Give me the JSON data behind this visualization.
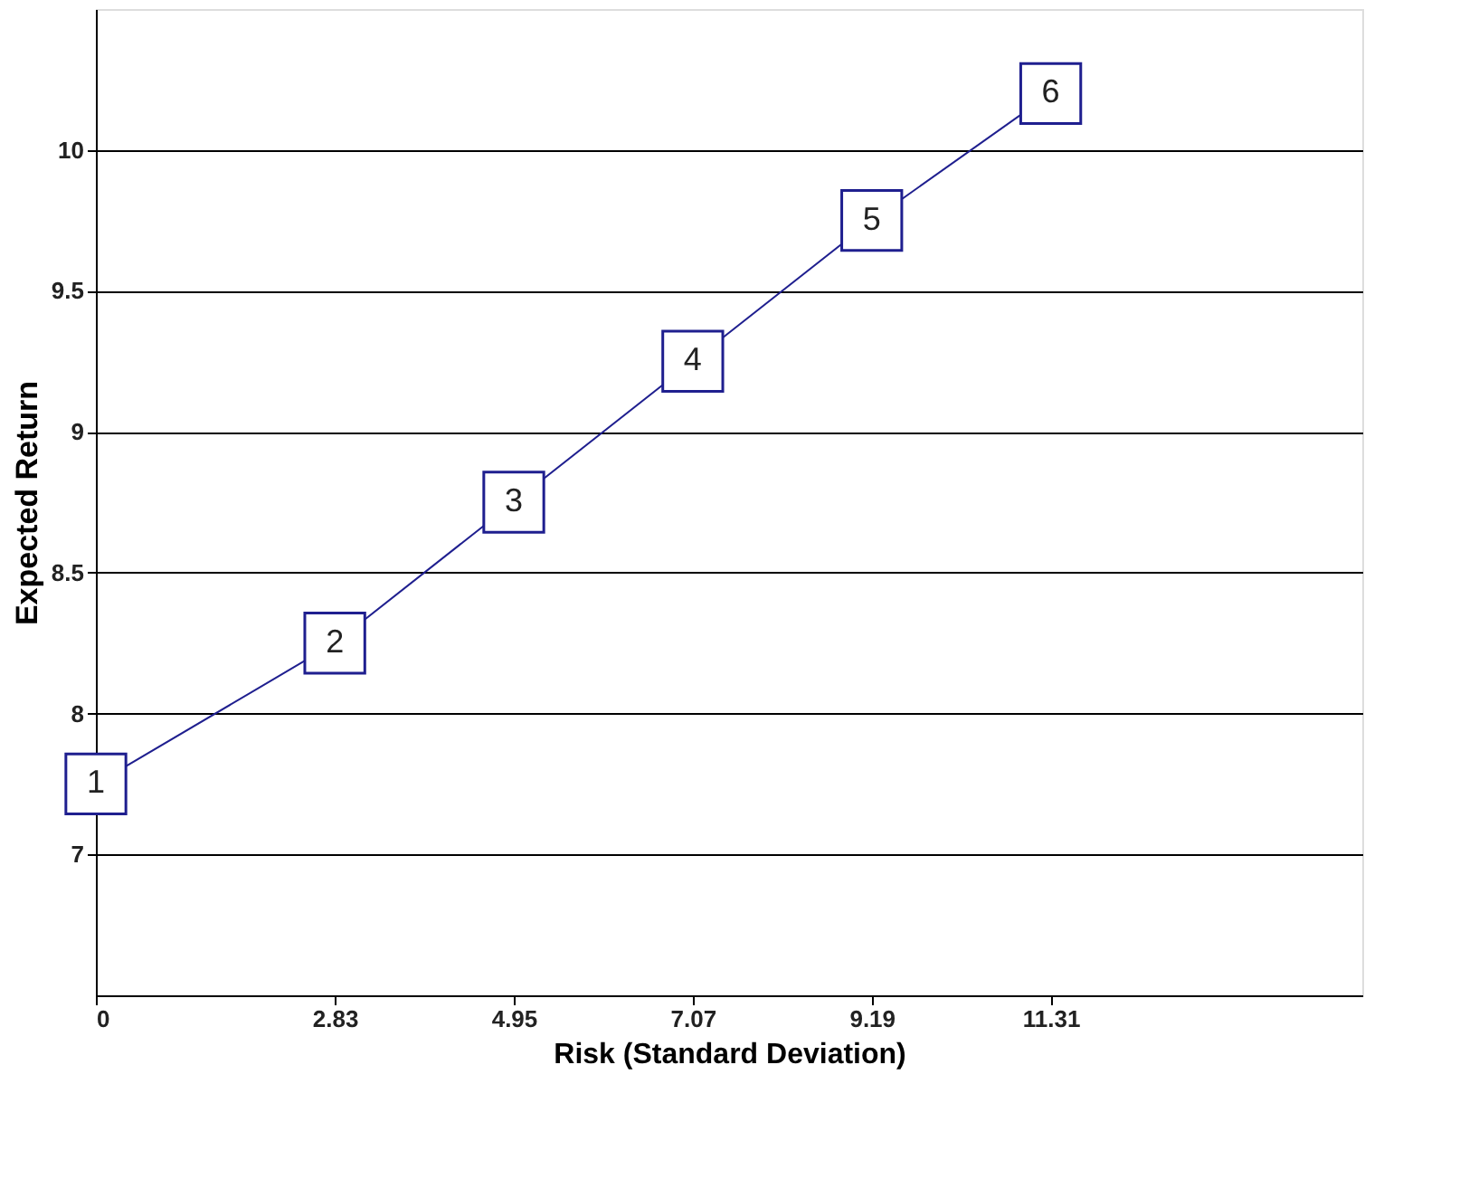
{
  "chart_data": {
    "type": "line",
    "xlabel": "Risk (Standard Deviation)",
    "ylabel": "Expected Return",
    "x": [
      0,
      2.83,
      4.95,
      7.07,
      9.19,
      11.31
    ],
    "series": [
      {
        "color": "#1f1f8f",
        "values": [
          7.75,
          8.25,
          8.75,
          9.25,
          9.75,
          10.2
        ]
      }
    ],
    "xlim": [
      0,
      15
    ],
    "xticks": [
      0,
      2.83,
      4.95,
      7.07,
      9.19,
      11.31
    ],
    "ylim": [
      7,
      10.5
    ],
    "yticks": [
      {
        "value": 7.5,
        "label": "7"
      },
      8,
      8.5,
      9,
      9.5,
      10
    ],
    "grid": "y",
    "marker": "square",
    "line_style": "solid",
    "annotations": [
      {
        "text": "1",
        "x": 0,
        "y": 7.75
      },
      {
        "text": "2",
        "x": 2.83,
        "y": 8.25
      },
      {
        "text": "3",
        "x": 4.95,
        "y": 8.75
      },
      {
        "text": "4",
        "x": 7.07,
        "y": 9.25
      },
      {
        "text": "5",
        "x": 9.19,
        "y": 9.75
      },
      {
        "text": "6",
        "x": 11.31,
        "y": 10.2
      }
    ]
  }
}
